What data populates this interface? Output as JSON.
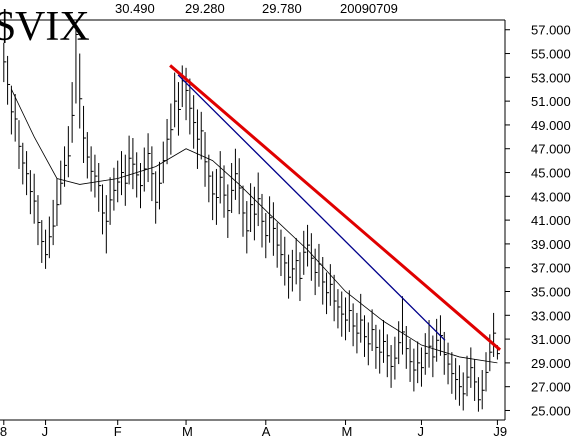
{
  "chart_data": {
    "type": "hlc",
    "title": "$VIX",
    "header_values": [
      "30.490",
      "29.280",
      "29.780"
    ],
    "date": "20090709",
    "bar_color": "#000000",
    "ylim": [
      24.2,
      59.5
    ],
    "xlim": [
      -1,
      132
    ],
    "yticks": [
      {
        "value": 25,
        "label": "25.000"
      },
      {
        "value": 27,
        "label": "27.000"
      },
      {
        "value": 29,
        "label": "29.000"
      },
      {
        "value": 31,
        "label": "31.000"
      },
      {
        "value": 33,
        "label": "33.000"
      },
      {
        "value": 35,
        "label": "35.000"
      },
      {
        "value": 37,
        "label": "37.000"
      },
      {
        "value": 39,
        "label": "39.000"
      },
      {
        "value": 41,
        "label": "41.000"
      },
      {
        "value": 43,
        "label": "43.000"
      },
      {
        "value": 45,
        "label": "45.000"
      },
      {
        "value": 47,
        "label": "47.000"
      },
      {
        "value": 49,
        "label": "49.000"
      },
      {
        "value": 51,
        "label": "51.000"
      },
      {
        "value": 53,
        "label": "53.000"
      },
      {
        "value": 55,
        "label": "55.000"
      },
      {
        "value": 57,
        "label": "57.000"
      }
    ],
    "xticks": [
      {
        "value": 0,
        "label": "8"
      },
      {
        "value": 11,
        "label": "J"
      },
      {
        "value": 30,
        "label": "F"
      },
      {
        "value": 48,
        "label": "M"
      },
      {
        "value": 69,
        "label": "A"
      },
      {
        "value": 90,
        "label": "M"
      },
      {
        "value": 110,
        "label": "J"
      },
      {
        "value": 130,
        "label": "J9"
      }
    ],
    "close": [
      54.3,
      52.4,
      50.1,
      49.5,
      47.2,
      45.8,
      44.9,
      43.4,
      42.6,
      40.8,
      39.2,
      38.1,
      39.6,
      40.5,
      42.3,
      44.1,
      45.6,
      46.4,
      49.8,
      56.6,
      51.2,
      47.9,
      46.3,
      45.1,
      44.7,
      43.9,
      41.6,
      40.9,
      42.7,
      43.5,
      44.2,
      45.0,
      44.1,
      46.2,
      45.7,
      44.8,
      43.9,
      45.3,
      46.6,
      44.9,
      42.5,
      44.1,
      46.0,
      47.8,
      48.6,
      51.0,
      50.3,
      52.7,
      51.9,
      50.4,
      49.2,
      47.8,
      48.5,
      45.9,
      44.7,
      43.2,
      42.9,
      44.6,
      43.1,
      41.8,
      43.5,
      44.9,
      43.7,
      41.6,
      40.1,
      42.3,
      41.5,
      42.8,
      40.9,
      39.7,
      41.2,
      40.3,
      38.9,
      38.1,
      37.4,
      36.2,
      36.9,
      37.6,
      36.1,
      38.3,
      38.9,
      37.8,
      36.6,
      37.3,
      35.8,
      34.9,
      35.6,
      34.2,
      33.7,
      33.1,
      32.6,
      33.4,
      32.1,
      31.5,
      32.6,
      31.2,
      30.6,
      31.8,
      30.3,
      29.9,
      30.8,
      29.6,
      28.7,
      29.4,
      30.7,
      31.6,
      30.2,
      29.1,
      28.4,
      29.0,
      28.6,
      29.8,
      30.4,
      29.5,
      30.9,
      31.3,
      29.7,
      28.9,
      28.1,
      27.6,
      27.0,
      26.4,
      27.8,
      28.6,
      27.4,
      25.9,
      26.7,
      28.2,
      29.9,
      31.5,
      29.78
    ],
    "high": [
      55.9,
      54.8,
      52.3,
      51.6,
      49.4,
      47.5,
      46.8,
      45.2,
      44.9,
      43.1,
      41.0,
      40.2,
      41.3,
      42.7,
      44.5,
      46.0,
      47.2,
      48.9,
      52.6,
      57.3,
      55.0,
      50.6,
      48.4,
      47.2,
      46.5,
      45.8,
      44.0,
      43.1,
      44.6,
      45.4,
      46.0,
      46.8,
      46.5,
      48.1,
      47.9,
      46.7,
      45.8,
      47.1,
      48.3,
      47.2,
      45.1,
      45.9,
      47.6,
      49.5,
      50.8,
      53.4,
      52.6,
      54.0,
      53.8,
      52.9,
      51.5,
      50.3,
      50.1,
      48.4,
      46.5,
      45.1,
      45.3,
      46.8,
      45.6,
      44.0,
      45.8,
      47.0,
      46.2,
      43.9,
      42.6,
      44.1,
      43.8,
      45.0,
      43.2,
      41.6,
      43.0,
      42.5,
      40.8,
      40.2,
      39.6,
      38.1,
      38.5,
      39.5,
      38.3,
      40.1,
      40.6,
      39.9,
      38.6,
      39.0,
      37.9,
      36.6,
      37.3,
      36.4,
      35.2,
      35.0,
      34.5,
      35.1,
      34.0,
      33.2,
      34.8,
      33.0,
      32.4,
      33.5,
      32.2,
      31.8,
      32.6,
      31.4,
      30.5,
      31.2,
      32.5,
      34.6,
      32.1,
      31.0,
      30.2,
      30.8,
      30.3,
      31.5,
      32.6,
      31.3,
      32.7,
      33.0,
      31.6,
      30.7,
      29.9,
      29.4,
      28.8,
      28.2,
      29.6,
      30.3,
      29.3,
      27.8,
      28.4,
      29.9,
      31.4,
      33.2,
      30.49
    ],
    "low": [
      52.6,
      50.7,
      48.2,
      47.6,
      45.3,
      44.0,
      43.1,
      41.5,
      40.7,
      38.9,
      37.4,
      36.9,
      37.8,
      38.9,
      40.5,
      42.3,
      43.8,
      44.6,
      47.5,
      50.8,
      48.7,
      45.8,
      44.5,
      43.4,
      42.9,
      41.7,
      39.8,
      38.2,
      40.6,
      41.8,
      42.5,
      43.1,
      42.2,
      44.0,
      43.6,
      42.9,
      42.0,
      43.4,
      44.2,
      42.6,
      40.7,
      41.9,
      44.1,
      45.7,
      46.5,
      48.8,
      48.1,
      50.5,
      49.4,
      48.2,
      47.0,
      45.3,
      46.1,
      43.8,
      42.5,
      41.0,
      40.6,
      42.4,
      41.2,
      39.5,
      41.6,
      42.7,
      41.5,
      39.6,
      38.2,
      40.0,
      39.3,
      40.5,
      38.7,
      37.8,
      39.1,
      38.0,
      37.0,
      36.3,
      35.5,
      34.4,
      35.0,
      35.6,
      34.2,
      36.4,
      37.1,
      35.9,
      34.7,
      35.4,
      33.9,
      33.1,
      33.8,
      32.5,
      31.9,
      31.2,
      30.9,
      31.6,
      30.4,
      29.8,
      30.7,
      29.5,
      28.8,
      30.0,
      28.5,
      28.1,
      29.0,
      27.8,
      26.9,
      27.6,
      28.9,
      29.7,
      28.5,
      27.4,
      26.6,
      27.3,
      27.0,
      28.0,
      28.6,
      27.8,
      29.1,
      29.6,
      28.0,
      27.2,
      26.4,
      25.9,
      25.4,
      25.0,
      26.2,
      26.9,
      25.8,
      24.9,
      25.1,
      26.6,
      28.3,
      29.5,
      29.28
    ],
    "moving_average": {
      "color": "#000000",
      "x": [
        2,
        8,
        14,
        20,
        30,
        40,
        48,
        55,
        62,
        70,
        80,
        90,
        100,
        110,
        120,
        130
      ],
      "values": [
        52,
        48,
        44.5,
        44,
        44.5,
        45.5,
        47,
        46,
        44,
        41.5,
        38.5,
        35,
        32.5,
        30.5,
        29.5,
        29
      ]
    },
    "trendlines": [
      {
        "color": "#e00000",
        "x": [
          43.8,
          130.7
        ],
        "values": [
          54.0,
          30.1
        ]
      },
      {
        "color": "#00008b",
        "x": [
          45.9,
          116.2
        ],
        "values": [
          53.2,
          30.9
        ]
      }
    ]
  }
}
